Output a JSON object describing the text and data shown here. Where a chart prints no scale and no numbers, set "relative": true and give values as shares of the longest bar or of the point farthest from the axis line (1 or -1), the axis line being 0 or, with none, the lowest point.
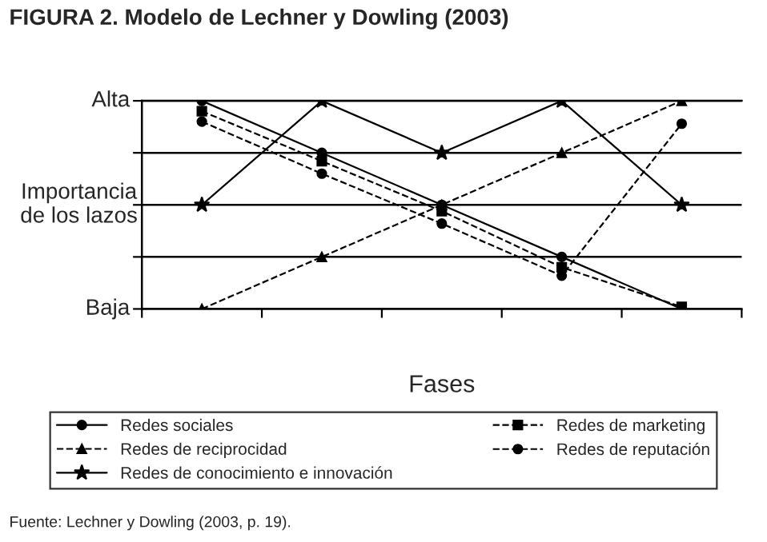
{
  "chart_data": {
    "type": "line",
    "title": "FIGURA 2. Modelo de Lechner y Dowling (2003)",
    "xlabel": "Fases",
    "ylabel": "Importancia\nde los lazos",
    "categories": [
      null,
      null,
      null,
      null,
      null
    ],
    "relative": true,
    "series": [
      {
        "name": "Redes sociales",
        "color": "#000000",
        "marker": "circle",
        "line_style": "solid",
        "values": [
          1,
          0.75,
          0.5,
          0.25,
          0
        ]
      },
      {
        "name": "Redes de reciprocidad",
        "color": "#000000",
        "marker": "triangle",
        "line_style": "dashed",
        "values": [
          0,
          0.25,
          0.5,
          0.75,
          1
        ]
      },
      {
        "name": "Redes de conocimiento e innovación",
        "color": "#000000",
        "marker": "star",
        "line_style": "solid",
        "values": [
          0.5,
          1,
          0.75,
          1,
          0.5
        ]
      },
      {
        "name": "Redes de marketing",
        "color": "#000000",
        "marker": "square",
        "line_style": "dashed",
        "values": [
          0.95,
          0.71,
          0.47,
          0.2,
          0.01
        ]
      },
      {
        "name": "Redes de reputación",
        "color": "#000000",
        "marker": "circle",
        "line_style": "dashed",
        "values": [
          0.9,
          0.65,
          0.41,
          0.16,
          0.89
        ]
      }
    ],
    "grid": "y",
    "legend": "bottom",
    "annotations": [
      "Alta",
      "Baja",
      "Fuente: Lechner y Dowling (2003, p. 19)."
    ]
  }
}
